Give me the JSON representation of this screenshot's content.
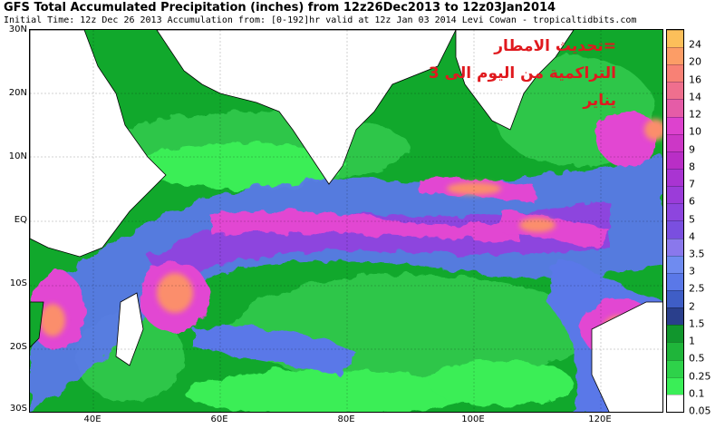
{
  "header": {
    "title": "GFS Total Accumulated Precipitation (inches) from 12z26Dec2013 to 12z03Jan2014",
    "subtitle": "Initial Time: 12z Dec 26 2013 Accumulation from: [0-192]hr valid at 12z Jan 03 2014  Levi Cowan - tropicaltidbits.com"
  },
  "overlay_text": {
    "line1": "=تحديث الامطار",
    "line2": "التراكمية من اليوم الى 3",
    "line3": "يناير"
  },
  "map": {
    "lat_labels": [
      "30N",
      "20N",
      "10N",
      "EQ",
      "10S",
      "20S",
      "30S"
    ],
    "lon_labels": [
      "40E",
      "60E",
      "80E",
      "100E",
      "120E"
    ],
    "colors": {
      "land": "#ffffff",
      "ocean_dry": "#11a82c",
      "light": "#2ec64a",
      "bright": "#3aee57",
      "blue": "#5a78e8",
      "purple": "#8d45de",
      "magenta": "#e246d2",
      "orange": "#fb8e6c",
      "coast": "#000000"
    }
  },
  "colorbar": {
    "labels": [
      "0.05",
      "0.1",
      "0.25",
      "0.5",
      "1",
      "1.5",
      "2",
      "2.5",
      "3",
      "3.5",
      "4",
      "5",
      "6",
      "7",
      "8",
      "9",
      "10",
      "12",
      "14",
      "16",
      "20",
      "24"
    ],
    "colors": [
      "#ffffff",
      "#3aee57",
      "#2ed24a",
      "#1fb53a",
      "#11962d",
      "#2a3f8c",
      "#3f5ec6",
      "#5a78e8",
      "#6f8bf0",
      "#8a78ec",
      "#7a4fdf",
      "#8d45de",
      "#9b3cd9",
      "#a934d2",
      "#b92ec6",
      "#cc37c6",
      "#dd42ce",
      "#e55ca7",
      "#ef6f8e",
      "#f88175",
      "#fc9d66",
      "#fcbf5a"
    ]
  }
}
